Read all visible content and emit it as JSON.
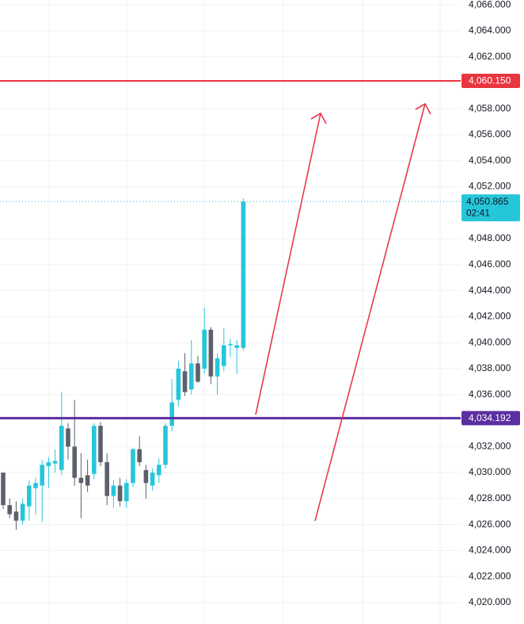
{
  "chart_data": {
    "type": "candlestick",
    "open": [
      4030.0,
      4027.5,
      4027.0,
      4026.3,
      4027.4,
      4028.8,
      4029.0,
      4030.5,
      4030.7,
      4030.2,
      4033.4,
      4032.0,
      4029.6,
      4029.8,
      4029.9,
      4033.6,
      4030.8,
      4028.2,
      4029.0,
      4027.8,
      4029.2,
      4031.8,
      4030.2,
      4029.0,
      4029.8,
      4030.6,
      4033.6,
      4035.6,
      4037.8,
      4036.4,
      4038.4,
      4038.0,
      4041.0,
      4037.4,
      4038.2,
      4039.8,
      4039.6,
      4039.6
    ],
    "high": [
      4030.0,
      4028.0,
      4027.8,
      4028.0,
      4029.4,
      4029.6,
      4031.0,
      4031.2,
      4031.8,
      4036.2,
      4033.8,
      4035.6,
      4031.5,
      4031.0,
      4033.8,
      4033.9,
      4031.5,
      4029.4,
      4029.6,
      4029.5,
      4031.9,
      4032.8,
      4030.6,
      4030.3,
      4031.1,
      4033.8,
      4037.2,
      4038.6,
      4039.2,
      4040.2,
      4039.0,
      4042.7,
      4041.2,
      4039.2,
      4041.1,
      4040.3,
      4040.2,
      4051.1
    ],
    "low": [
      4027.2,
      4026.5,
      4025.6,
      4026.0,
      4026.3,
      4026.8,
      4026.2,
      4028.8,
      4030.0,
      4029.8,
      4031.0,
      4029.0,
      4026.5,
      4028.5,
      4029.5,
      4030.5,
      4027.5,
      4027.3,
      4027.4,
      4027.3,
      4028.9,
      4030.5,
      4028.0,
      4028.6,
      4029.2,
      4030.3,
      4033.2,
      4035.1,
      4035.9,
      4036.0,
      4036.9,
      4037.6,
      4036.8,
      4036.0,
      4037.8,
      4038.9,
      4037.6,
      4039.4
    ],
    "close": [
      4027.5,
      4026.8,
      4026.3,
      4027.6,
      4029.0,
      4029.2,
      4030.6,
      4030.8,
      4030.9,
      4033.6,
      4032.0,
      4029.6,
      4029.2,
      4029.0,
      4033.6,
      4030.8,
      4028.2,
      4029.0,
      4027.8,
      4029.2,
      4031.8,
      4030.8,
      4029.2,
      4030.0,
      4030.6,
      4033.6,
      4035.4,
      4038.0,
      4036.2,
      4038.4,
      4037.0,
      4041.0,
      4037.4,
      4038.8,
      4039.8,
      4039.9,
      4039.8,
      4050.865
    ],
    "up_color": "#26c6da",
    "down_color": "#5d606b",
    "ylim": [
      4018.35,
      4066.37
    ],
    "yticks": [
      {
        "value": 4066,
        "label": "4,066.000"
      },
      {
        "value": 4064,
        "label": "4,064.000"
      },
      {
        "value": 4062,
        "label": "4,062.000"
      },
      {
        "value": 4058,
        "label": "4,058.000"
      },
      {
        "value": 4056,
        "label": "4,056.000"
      },
      {
        "value": 4054,
        "label": "4,054.000"
      },
      {
        "value": 4052,
        "label": "4,052.000"
      },
      {
        "value": 4048,
        "label": "4,048.000"
      },
      {
        "value": 4046,
        "label": "4,046.000"
      },
      {
        "value": 4044,
        "label": "4,044.000"
      },
      {
        "value": 4042,
        "label": "4,042.000"
      },
      {
        "value": 4040,
        "label": "4,040.000"
      },
      {
        "value": 4038,
        "label": "4,038.000"
      },
      {
        "value": 4036,
        "label": "4,036.000"
      },
      {
        "value": 4032,
        "label": "4,032.000"
      },
      {
        "value": 4030,
        "label": "4,030.000"
      },
      {
        "value": 4028,
        "label": "4,028.000"
      },
      {
        "value": 4026,
        "label": "4,026.000"
      },
      {
        "value": 4024,
        "label": "4,024.000"
      },
      {
        "value": 4022,
        "label": "4,022.000"
      },
      {
        "value": 4020,
        "label": "4,020.000"
      }
    ],
    "grid": true,
    "price_lines": [
      {
        "value": 4060.15,
        "label": "4,060.150",
        "color": "#e8353f"
      },
      {
        "value": 4034.192,
        "label": "4,034.192",
        "color": "#5b2fa0"
      }
    ],
    "last_price": {
      "value": 4050.865,
      "label": "4,050.865",
      "countdown": "02:41",
      "color": "#26c6da"
    }
  }
}
